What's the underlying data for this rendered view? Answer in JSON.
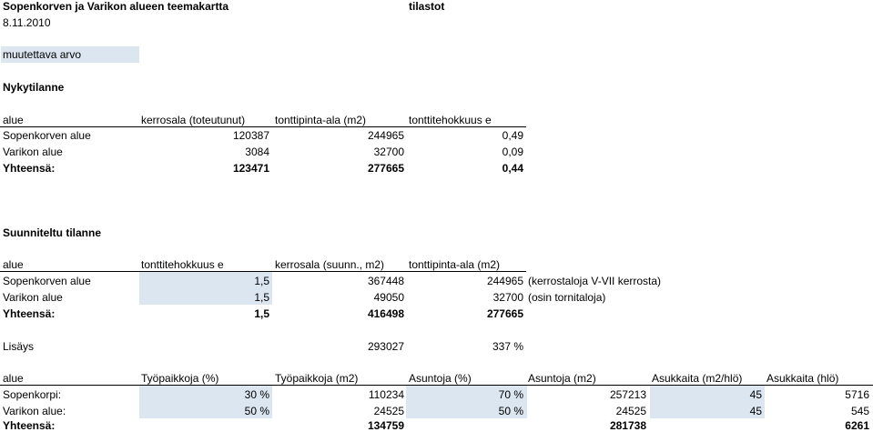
{
  "title": "Sopenkorven ja Varikon alueen teemakartta",
  "date": "8.11.2010",
  "stats_label": "tilastot",
  "editable_label": "muutettava arvo",
  "current": {
    "heading": "Nykytilanne",
    "headers": [
      "alue",
      "kerrosala (toteutunut)",
      "tonttipinta-ala (m2)",
      "tonttitehokkuus e"
    ],
    "rows": [
      [
        "Sopenkorven alue",
        "120387",
        "244965",
        "0,49"
      ],
      [
        "Varikon alue",
        "3084",
        "32700",
        "0,09"
      ]
    ],
    "total": [
      "Yhteensä:",
      "123471",
      "277665",
      "0,44"
    ]
  },
  "planned": {
    "heading": "Suunniteltu tilanne",
    "headers": [
      "alue",
      "tonttitehokkuus e",
      "kerrosala (suunn., m2)",
      "tonttipinta-ala (m2)"
    ],
    "rows": [
      [
        "Sopenkorven alue",
        "1,5",
        "367448",
        "244965",
        "(kerrostaloja V-VII kerrosta)"
      ],
      [
        "Varikon alue",
        "1,5",
        "49050",
        "32700",
        "(osin tornitaloja)"
      ]
    ],
    "total": [
      "Yhteensä:",
      "1,5",
      "416498",
      "277665"
    ]
  },
  "increase": [
    "Lisäys",
    "293027",
    "337 %"
  ],
  "jobs": {
    "headers": [
      "alue",
      "Työpaikkoja (%)",
      "Työpaikkoja (m2)",
      "Asuntoja (%)",
      "Asuntoja (m2)",
      "Asukkaita (m2/hlö)",
      "Asukkaita (hlö)"
    ],
    "rows": [
      [
        "Sopenkorpi:",
        "30 %",
        "110234",
        "70 %",
        "257213",
        "45",
        "5716"
      ],
      [
        "Varikon alue:",
        "50 %",
        "24525",
        "50 %",
        "24525",
        "45",
        "545"
      ]
    ],
    "total": [
      "Yhteensä:",
      "",
      "134759",
      "",
      "281738",
      "",
      "6261"
    ]
  }
}
